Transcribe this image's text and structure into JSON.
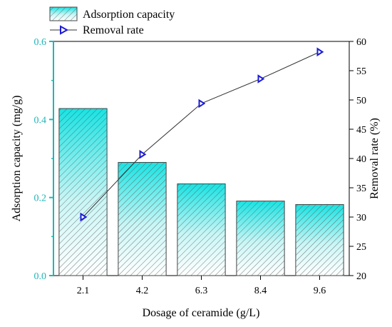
{
  "chart_data": {
    "type": "bar",
    "categories": [
      "2.1",
      "4.2",
      "6.3",
      "8.4",
      "9.6"
    ],
    "series": [
      {
        "name": "Adsorption capacity",
        "type": "bar",
        "axis": "left",
        "values": [
          0.428,
          0.29,
          0.235,
          0.191,
          0.182
        ]
      },
      {
        "name": "Removal rate",
        "type": "line",
        "axis": "right",
        "values": [
          30.0,
          40.7,
          49.4,
          53.6,
          58.2
        ]
      }
    ],
    "xlabel": "Dosage of ceramide (g/L)",
    "ylabel": "Adsorption capacity (mg/g)",
    "y2label": "Removal rate (%)",
    "ylim": [
      0,
      0.6
    ],
    "y2lim": [
      20,
      60
    ],
    "yticks": [
      "0.0",
      "0.2",
      "0.4",
      "0.6"
    ],
    "y2ticks": [
      "20",
      "25",
      "30",
      "35",
      "40",
      "45",
      "50",
      "55",
      "60"
    ],
    "legend_position": "top-left",
    "grid": false,
    "colors": {
      "bar_top": "#19e3e3",
      "bar_bottom": "#ffffff",
      "hatch": "#555555",
      "bar_border": "#444444",
      "line": "#333333",
      "marker": "#1c1cd6",
      "left_axis": "#1fb5b8"
    }
  }
}
